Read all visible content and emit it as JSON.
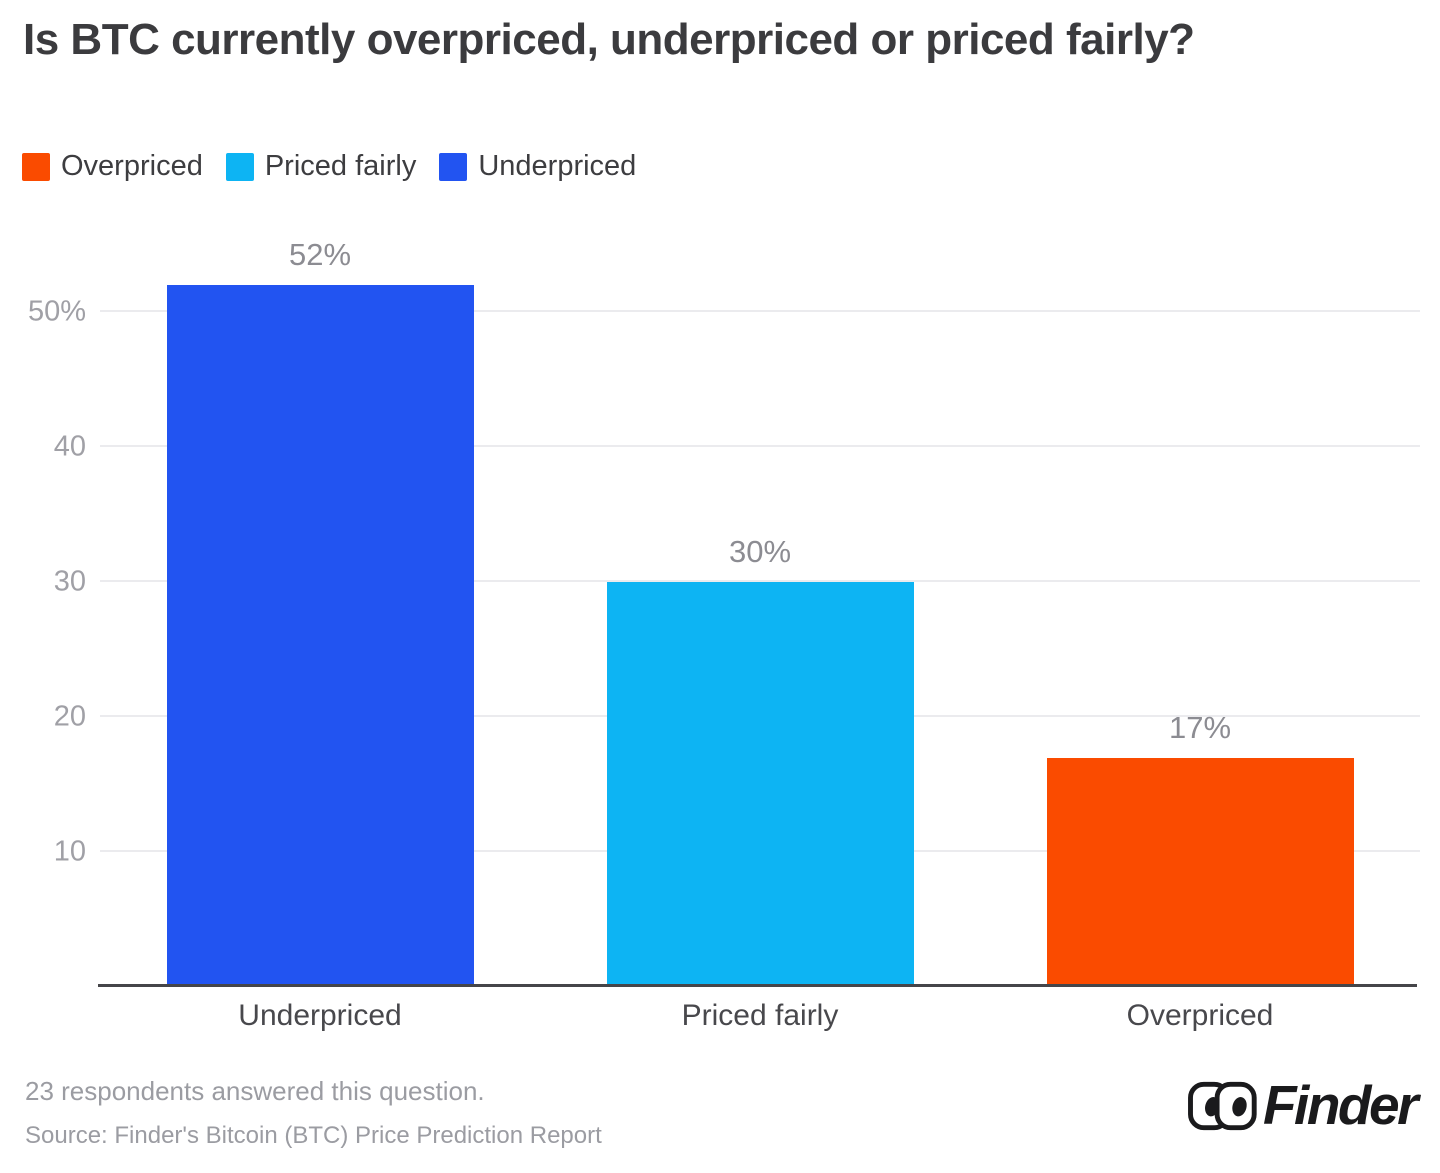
{
  "title": "Is BTC currently overpriced, underpriced or priced fairly?",
  "legend": [
    {
      "label": "Overpriced",
      "color": "#fa4b00"
    },
    {
      "label": "Priced fairly",
      "color": "#0db4f3"
    },
    {
      "label": "Underpriced",
      "color": "#2254f1"
    }
  ],
  "chart_data": {
    "type": "bar",
    "title": "Is BTC currently overpriced, underpriced or priced fairly?",
    "categories": [
      "Underpriced",
      "Priced fairly",
      "Overpriced"
    ],
    "values": [
      52,
      30,
      17
    ],
    "value_labels": [
      "52%",
      "30%",
      "17%"
    ],
    "colors": [
      "#2254f1",
      "#0db4f3",
      "#fa4b00"
    ],
    "xlabel": "",
    "ylabel": "",
    "ylim": [
      0,
      55
    ],
    "yticks": [
      10,
      20,
      30,
      40,
      50
    ],
    "ytick_labels": [
      "10",
      "20",
      "30",
      "40",
      "50%"
    ],
    "grid": true,
    "legend_position": "top"
  },
  "colors": {
    "grid": "#ebebee",
    "axis_line": "#454549",
    "title_text": "#3b3b3e",
    "tick_text": "#a0a0a6",
    "value_text": "#8c8c92",
    "category_text": "#48484c",
    "footer_text": "#9b9ca2",
    "brand_text": "#1a1a1c"
  },
  "footer": {
    "respondents": "23 respondents answered this question.",
    "source": "Source: Finder's Bitcoin (BTC) Price Prediction Report",
    "brand": "Finder"
  }
}
